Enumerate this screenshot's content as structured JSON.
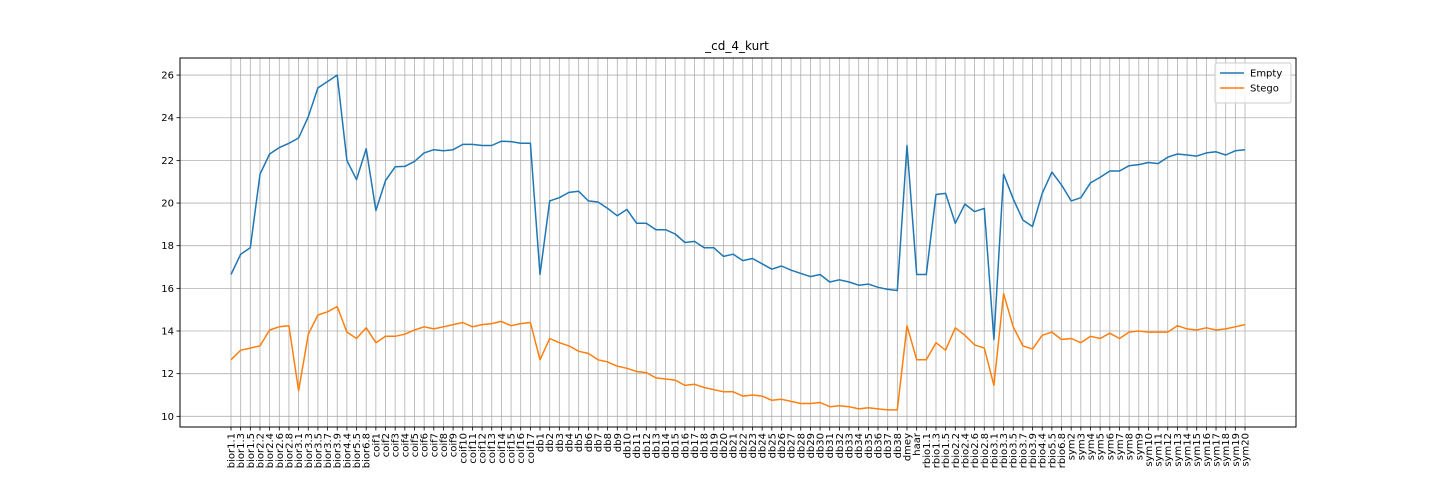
{
  "chart_data": {
    "type": "line",
    "title": "_cd_4_kurt",
    "xlabel": "",
    "ylabel": "",
    "ylim": [
      9.5,
      26.8
    ],
    "yticks": [
      10,
      12,
      14,
      16,
      18,
      20,
      22,
      24,
      26
    ],
    "grid": true,
    "legend_position": "top-right",
    "categories": [
      "bior1.1",
      "bior1.3",
      "bior1.5",
      "bior2.2",
      "bior2.4",
      "bior2.6",
      "bior2.8",
      "bior3.1",
      "bior3.3",
      "bior3.5",
      "bior3.7",
      "bior3.9",
      "bior4.4",
      "bior5.5",
      "bior6.8",
      "coif1",
      "coif2",
      "coif3",
      "coif4",
      "coif5",
      "coif6",
      "coif7",
      "coif8",
      "coif9",
      "coif10",
      "coif11",
      "coif12",
      "coif13",
      "coif14",
      "coif15",
      "coif16",
      "coif17",
      "db1",
      "db2",
      "db3",
      "db4",
      "db5",
      "db6",
      "db7",
      "db8",
      "db9",
      "db10",
      "db11",
      "db12",
      "db13",
      "db14",
      "db15",
      "db16",
      "db17",
      "db18",
      "db19",
      "db20",
      "db21",
      "db22",
      "db23",
      "db24",
      "db25",
      "db26",
      "db27",
      "db28",
      "db29",
      "db30",
      "db31",
      "db32",
      "db33",
      "db34",
      "db35",
      "db36",
      "db37",
      "db38",
      "dmey",
      "haar",
      "rbio1.1",
      "rbio1.3",
      "rbio1.5",
      "rbio2.2",
      "rbio2.4",
      "rbio2.6",
      "rbio2.8",
      "rbio3.1",
      "rbio3.3",
      "rbio3.5",
      "rbio3.7",
      "rbio3.9",
      "rbio4.4",
      "rbio5.5",
      "rbio6.8",
      "sym2",
      "sym3",
      "sym4",
      "sym5",
      "sym6",
      "sym7",
      "sym8",
      "sym9",
      "sym10",
      "sym11",
      "sym12",
      "sym13",
      "sym14",
      "sym15",
      "sym16",
      "sym17",
      "sym18",
      "sym19",
      "sym20"
    ],
    "series": [
      {
        "name": "Empty",
        "color": "#1f77b4",
        "values": [
          16.65,
          17.6,
          17.9,
          21.35,
          22.3,
          22.6,
          22.8,
          23.05,
          24.05,
          25.4,
          25.7,
          26.0,
          22.0,
          21.1,
          22.55,
          19.65,
          21.05,
          21.7,
          21.72,
          21.95,
          22.35,
          22.5,
          22.45,
          22.5,
          22.75,
          22.75,
          22.7,
          22.7,
          22.9,
          22.88,
          22.8,
          22.8,
          16.65,
          20.1,
          20.25,
          20.5,
          20.55,
          20.1,
          20.05,
          19.75,
          19.4,
          19.7,
          19.05,
          19.05,
          18.75,
          18.75,
          18.55,
          18.15,
          18.2,
          17.9,
          17.9,
          17.5,
          17.6,
          17.3,
          17.4,
          17.15,
          16.9,
          17.05,
          16.85,
          16.7,
          16.55,
          16.65,
          16.3,
          16.4,
          16.3,
          16.15,
          16.2,
          16.05,
          15.95,
          15.9,
          22.7,
          16.65,
          16.65,
          20.4,
          20.45,
          19.05,
          19.95,
          19.6,
          19.75,
          13.6,
          21.35,
          20.2,
          19.2,
          18.9,
          20.45,
          21.45,
          20.85,
          20.1,
          20.25,
          20.95,
          21.2,
          21.5,
          21.5,
          21.75,
          21.8,
          21.9,
          21.85,
          22.15,
          22.3,
          22.25,
          22.2,
          22.35,
          22.4,
          22.25,
          22.45,
          22.5
        ]
      },
      {
        "name": "Stego",
        "color": "#ff7f0e",
        "values": [
          12.65,
          13.1,
          13.2,
          13.3,
          14.05,
          14.2,
          14.25,
          11.2,
          13.85,
          14.75,
          14.9,
          15.15,
          13.95,
          13.65,
          14.15,
          13.45,
          13.75,
          13.75,
          13.85,
          14.05,
          14.2,
          14.1,
          14.2,
          14.3,
          14.4,
          14.2,
          14.3,
          14.35,
          14.45,
          14.25,
          14.35,
          14.4,
          12.65,
          13.65,
          13.45,
          13.3,
          13.05,
          12.95,
          12.65,
          12.55,
          12.35,
          12.25,
          12.1,
          12.05,
          11.8,
          11.75,
          11.7,
          11.45,
          11.5,
          11.35,
          11.25,
          11.15,
          11.15,
          10.95,
          11.0,
          10.95,
          10.75,
          10.8,
          10.7,
          10.6,
          10.6,
          10.65,
          10.45,
          10.5,
          10.45,
          10.35,
          10.4,
          10.35,
          10.3,
          10.3,
          14.25,
          12.65,
          12.65,
          13.45,
          13.1,
          14.15,
          13.8,
          13.35,
          13.2,
          11.45,
          15.75,
          14.2,
          13.3,
          13.15,
          13.8,
          13.95,
          13.6,
          13.65,
          13.45,
          13.75,
          13.65,
          13.9,
          13.65,
          13.95,
          14.0,
          13.95,
          13.95,
          13.95,
          14.25,
          14.1,
          14.05,
          14.15,
          14.05,
          14.1,
          14.2,
          14.3
        ]
      }
    ]
  }
}
